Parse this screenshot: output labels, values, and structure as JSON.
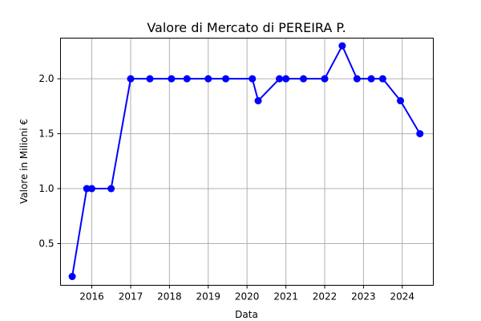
{
  "chart_data": {
    "type": "line",
    "title": "Valore di Mercato di PEREIRA P.",
    "xlabel": "Data",
    "ylabel": "Valore in Milioni €",
    "x_axis_type": "date",
    "xlim": [
      "2015-03-13",
      "2024-10-19"
    ],
    "ylim": [
      0.12,
      2.37
    ],
    "x_ticks": [
      "2016-01-01",
      "2017-01-01",
      "2018-01-01",
      "2019-01-01",
      "2020-01-01",
      "2021-01-01",
      "2022-01-01",
      "2023-01-01",
      "2024-01-01"
    ],
    "x_tick_labels": [
      "2016",
      "2017",
      "2018",
      "2019",
      "2020",
      "2021",
      "2022",
      "2023",
      "2024"
    ],
    "y_ticks": [
      0.5,
      1.0,
      1.5,
      2.0
    ],
    "y_tick_labels": [
      "0.5",
      "1.0",
      "1.5",
      "2.0"
    ],
    "grid": true,
    "color": "#0000ff",
    "marker": "circle",
    "points": [
      {
        "x": "2015-07-01",
        "y": 0.2
      },
      {
        "x": "2015-11-15",
        "y": 1.0
      },
      {
        "x": "2016-01-01",
        "y": 1.0
      },
      {
        "x": "2016-07-01",
        "y": 1.0
      },
      {
        "x": "2017-01-01",
        "y": 2.0
      },
      {
        "x": "2017-07-01",
        "y": 2.0
      },
      {
        "x": "2018-01-20",
        "y": 2.0
      },
      {
        "x": "2018-06-15",
        "y": 2.0
      },
      {
        "x": "2019-01-01",
        "y": 2.0
      },
      {
        "x": "2019-06-15",
        "y": 2.0
      },
      {
        "x": "2020-02-20",
        "y": 2.0
      },
      {
        "x": "2020-04-15",
        "y": 1.8
      },
      {
        "x": "2020-11-01",
        "y": 2.0
      },
      {
        "x": "2021-01-01",
        "y": 2.0
      },
      {
        "x": "2021-06-15",
        "y": 2.0
      },
      {
        "x": "2022-01-01",
        "y": 2.0
      },
      {
        "x": "2022-06-15",
        "y": 2.3
      },
      {
        "x": "2022-11-01",
        "y": 2.0
      },
      {
        "x": "2023-03-15",
        "y": 2.0
      },
      {
        "x": "2023-07-01",
        "y": 2.0
      },
      {
        "x": "2023-12-15",
        "y": 1.8
      },
      {
        "x": "2024-06-15",
        "y": 1.5
      }
    ]
  }
}
